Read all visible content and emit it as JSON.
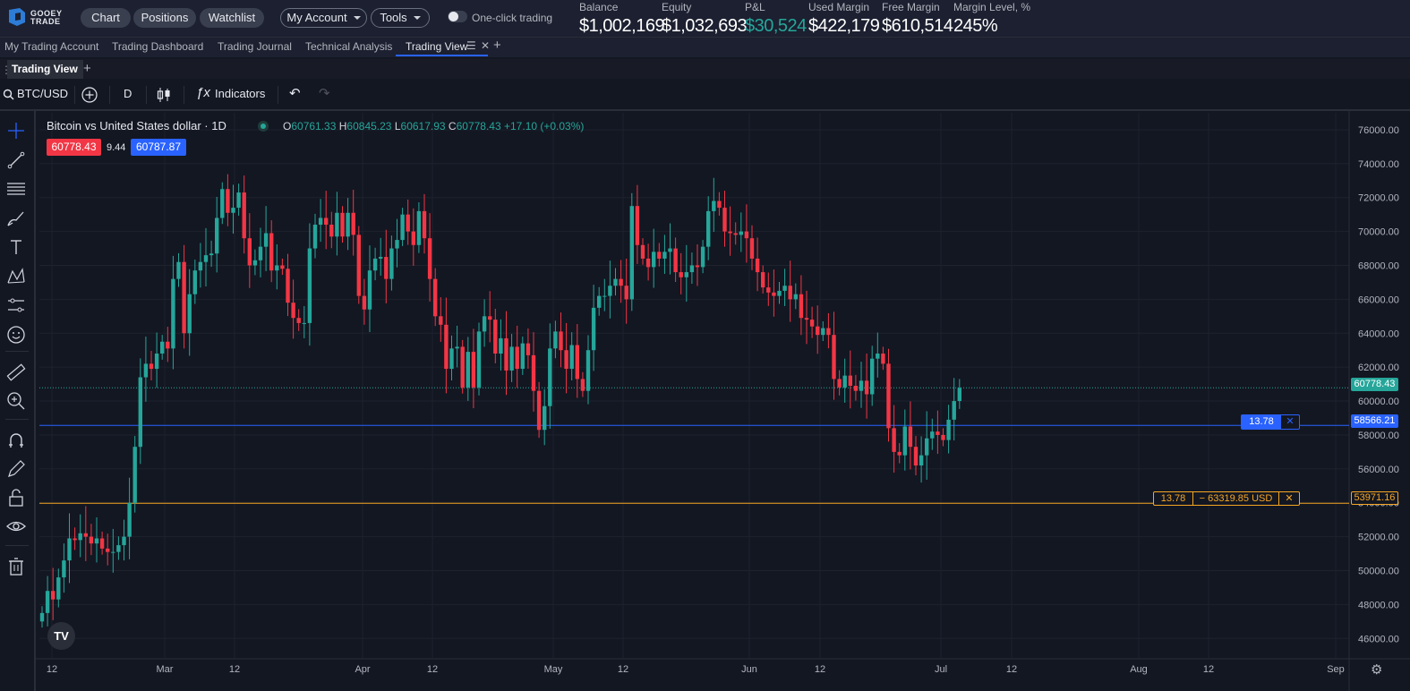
{
  "brand": {
    "line1": "GOOEY",
    "line2": "TRADE",
    "color": "#2d7cd6"
  },
  "nav": {
    "chart": "Chart",
    "positions": "Positions",
    "watchlist": "Watchlist",
    "my_account": "My Account",
    "tools": "Tools",
    "one_click": "One-click trading"
  },
  "account": {
    "balance_label": "Balance",
    "balance": "$1,002,169",
    "equity_label": "Equity",
    "equity": "$1,032,693",
    "pnl_label": "P&L",
    "pnl": "$30,524",
    "used_margin_label": "Used Margin",
    "used_margin": "$422,179",
    "free_margin_label": "Free Margin",
    "free_margin": "$610,514",
    "margin_level_label": "Margin Level, %",
    "margin_level": "245%"
  },
  "workspace_tabs": [
    "My Trading Account",
    "Trading Dashboard",
    "Trading Journal",
    "Technical Analysis",
    "Trading View"
  ],
  "layout_tab": "Trading View",
  "toolbar": {
    "symbol": "BTC/USD",
    "interval": "D",
    "indicators": "Indicators"
  },
  "legend": {
    "title": "Bitcoin vs United States dollar · 1D",
    "o_label": "O",
    "o": "60761.33",
    "h_label": "H",
    "h": "60845.23",
    "l_label": "L",
    "l": "60617.93",
    "c_label": "C",
    "c": "60778.43",
    "change": "+17.10 (+0.03%)",
    "sell": "60778.43",
    "spread": "9.44",
    "buy": "60787.87"
  },
  "price_tags": {
    "last": "60778.43",
    "blue_line": "58566.21",
    "orange_line": "53971.16"
  },
  "orders": {
    "blue_qty": "13.78",
    "blue_close": "✕",
    "orange_qty": "13.78",
    "orange_pnl": "− 63319.85 USD",
    "orange_close": "✕"
  },
  "tv_logo": "TV",
  "chart_data": {
    "type": "candlestick",
    "title": "Bitcoin vs United States dollar · 1D",
    "y_ticks": [
      76000,
      74000,
      72000,
      70000,
      68000,
      66000,
      64000,
      62000,
      60000,
      58000,
      56000,
      54000,
      52000,
      50000,
      48000,
      46000
    ],
    "y_tick_labels": [
      "76000.00",
      "74000.00",
      "72000.00",
      "70000.00",
      "68000.00",
      "66000.00",
      "64000.00",
      "62000.00",
      "60000.00",
      "58000.00",
      "56000.00",
      "54000.00",
      "52000.00",
      "50000.00",
      "48000.00",
      "46000.00"
    ],
    "ylim": [
      44800,
      77000
    ],
    "x_labels": [
      "12",
      "Mar",
      "12",
      "Apr",
      "12",
      "May",
      "12",
      "Jun",
      "12",
      "Jul",
      "12",
      "Aug",
      "12",
      "Sep"
    ],
    "horizontal_lines": [
      {
        "price": 60778.43,
        "color": "#26a69a",
        "style": "dotted"
      },
      {
        "price": 58566.21,
        "color": "#2962ff",
        "style": "solid"
      },
      {
        "price": 53971.16,
        "color": "#f5a623",
        "style": "solid"
      }
    ],
    "up_color": "#26a69a",
    "down_color": "#f23645",
    "closes": [
      47500,
      48800,
      48300,
      49600,
      50600,
      51900,
      51800,
      52200,
      52000,
      51600,
      51900,
      51300,
      51100,
      51100,
      51500,
      52000,
      54000,
      57300,
      61400,
      62200,
      61900,
      62800,
      63500,
      63100,
      67200,
      68200,
      64000,
      66300,
      67700,
      68200,
      68600,
      68700,
      70800,
      72500,
      71100,
      71400,
      72300,
      69600,
      68000,
      68300,
      69100,
      69900,
      67700,
      68000,
      67800,
      65800,
      64900,
      64600,
      64600,
      69000,
      70400,
      70800,
      70400,
      69700,
      71100,
      69700,
      71100,
      69800,
      66200,
      65400,
      67700,
      68400,
      68500,
      67200,
      69000,
      69500,
      71000,
      70000,
      69200,
      71200,
      69600,
      67200,
      65000,
      64500,
      61900,
      63100,
      63200,
      60800,
      62900,
      60800,
      64100,
      65000,
      64800,
      62800,
      63700,
      61800,
      63200,
      61900,
      63400,
      62700,
      60600,
      58300,
      59700,
      63100,
      64100,
      63000,
      61900,
      63300,
      61300,
      60600,
      63000,
      65500,
      66200,
      66200,
      66800,
      67200,
      66800,
      66000,
      71500,
      69200,
      68400,
      67900,
      68800,
      68400,
      68800,
      69000,
      67600,
      67300,
      67600,
      68000,
      67900,
      69100,
      71200,
      71800,
      71400,
      70000,
      69900,
      69800,
      70000,
      69600,
      68400,
      67600,
      66700,
      66400,
      66200,
      66500,
      66800,
      66000,
      66300,
      64900,
      64800,
      64400,
      63900,
      64300,
      63900,
      61300,
      60800,
      61500,
      60900,
      60600,
      61200,
      60400,
      62500,
      62800,
      62200,
      58400,
      57000,
      56800,
      58500,
      57300,
      56200,
      56800,
      57800,
      58200,
      58000,
      57700,
      58900,
      60000,
      60778
    ]
  }
}
